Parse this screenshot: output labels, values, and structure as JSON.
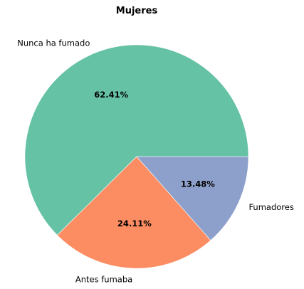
{
  "chart_data": {
    "type": "pie",
    "title": "Mujeres",
    "start_angle_deg": 0,
    "direction": "counterclockwise",
    "slices": [
      {
        "label": "Nunca ha fumado",
        "value": 62.41,
        "pct_label": "62.41%",
        "color": "#66c2a5"
      },
      {
        "label": "Antes fumaba",
        "value": 24.11,
        "pct_label": "24.11%",
        "color": "#fc8d62"
      },
      {
        "label": "Fumadores",
        "value": 13.48,
        "pct_label": "13.48%",
        "color": "#8da0cb"
      }
    ]
  }
}
